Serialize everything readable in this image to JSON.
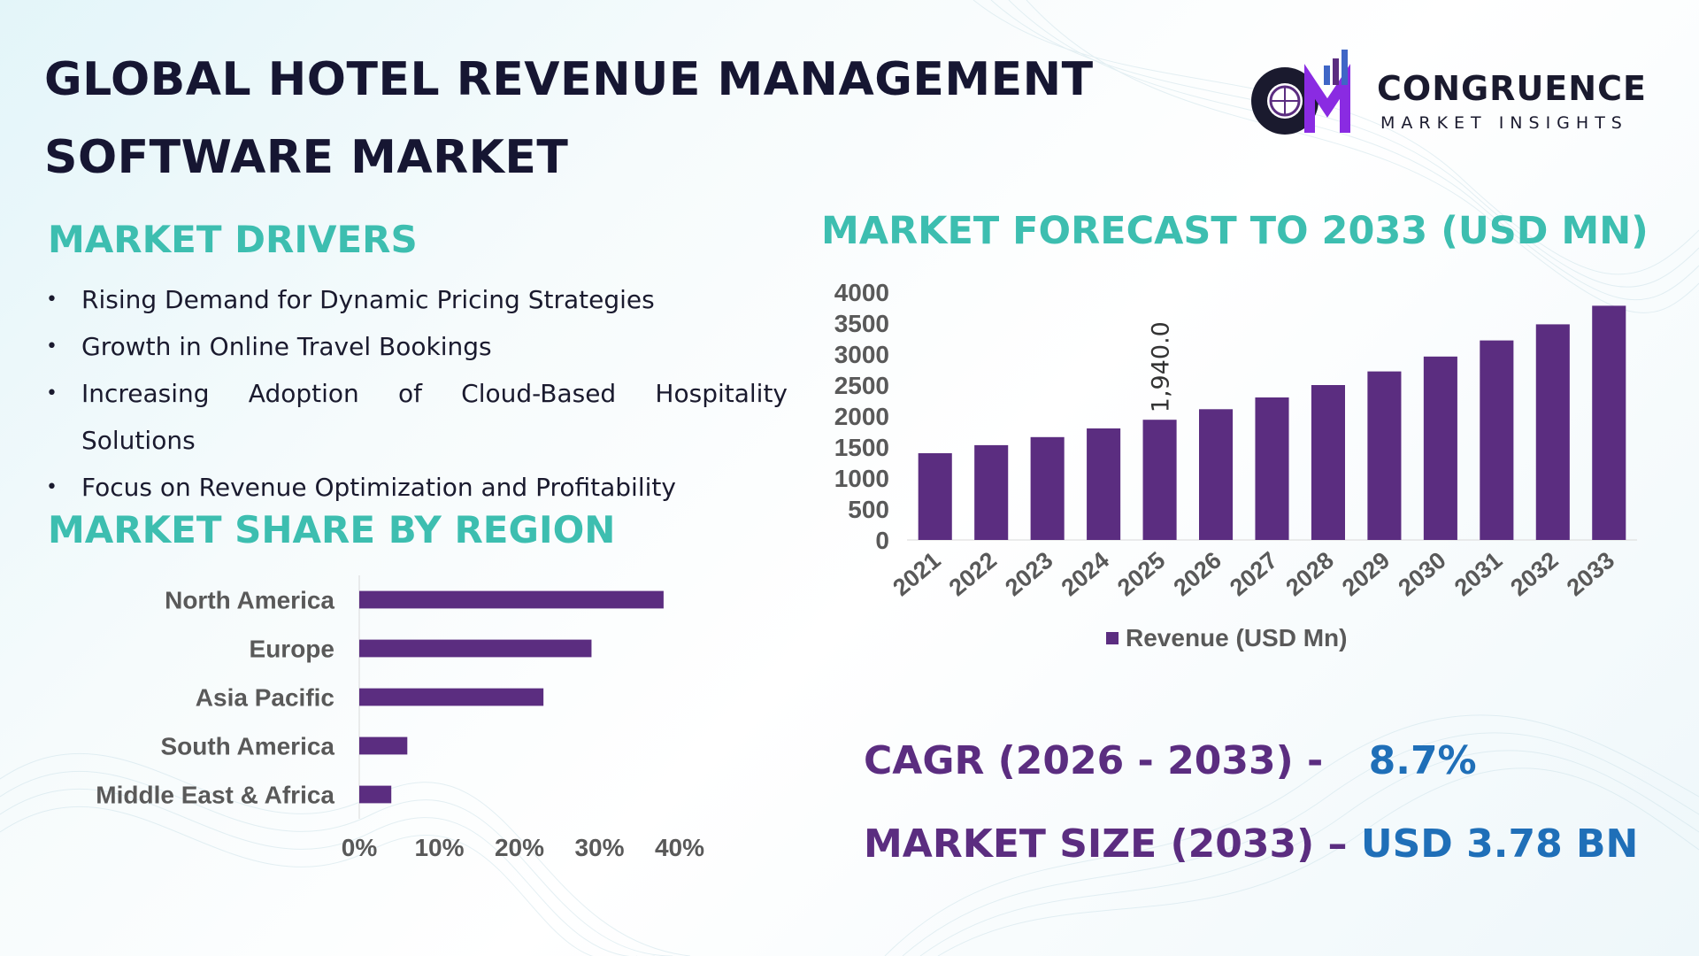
{
  "header": {
    "title_line1": "GLOBAL HOTEL REVENUE MANAGEMENT",
    "title_line2": "SOFTWARE MARKET"
  },
  "brand": {
    "logo_letters": "CM",
    "name": "CONGRUENCE",
    "tagline": "MARKET INSIGHTS"
  },
  "drivers": {
    "heading": "MARKET DRIVERS",
    "bullet": "•",
    "items": [
      "Rising Demand for Dynamic Pricing Strategies",
      "Growth in Online Travel Bookings",
      "Increasing Adoption of Cloud-Based Hospitality",
      "Solutions",
      "Focus on Revenue Optimization and Profitability"
    ]
  },
  "region": {
    "heading": "MARKET SHARE BY REGION"
  },
  "forecast": {
    "heading": "MARKET FORECAST TO 2033 (USD MN)"
  },
  "stats": {
    "cagr_label": "CAGR (2026 - 2033) -",
    "cagr_value": "8.7%",
    "size_label": "MARKET SIZE (2033) –",
    "size_value": "USD 3.78 BN"
  },
  "colors": {
    "bar": "#5b2d80",
    "heading_teal": "#3dbeb0",
    "title_dark": "#161632",
    "value_blue": "#1f6fb8",
    "axis_text": "#595959"
  },
  "chart_data": [
    {
      "type": "bar",
      "orientation": "vertical",
      "categories": [
        "2021",
        "2022",
        "2023",
        "2024",
        "2025",
        "2026",
        "2027",
        "2028",
        "2029",
        "2030",
        "2031",
        "2032",
        "2033"
      ],
      "series": [
        {
          "name": "Revenue (USD Mn)",
          "values": [
            1400,
            1530,
            1660,
            1800,
            1940,
            2110,
            2300,
            2500,
            2720,
            2960,
            3220,
            3480,
            3780
          ]
        }
      ],
      "data_labels": [
        {
          "category": "2025",
          "text": "1,940.0"
        }
      ],
      "ylim": [
        0,
        4000
      ],
      "yticks": [
        "0",
        "500",
        "1000",
        "1500",
        "2000",
        "2500",
        "3000",
        "3500",
        "4000"
      ],
      "legend": "bottom",
      "grid": false
    },
    {
      "type": "bar",
      "orientation": "horizontal",
      "categories": [
        "North America",
        "Europe",
        "Asia Pacific",
        "South America",
        "Middle East & Africa"
      ],
      "values": [
        38,
        29,
        23,
        6,
        4
      ],
      "xlim": [
        0,
        40
      ],
      "xticks": [
        "0%",
        "10%",
        "20%",
        "30%",
        "40%"
      ],
      "grid": false
    }
  ]
}
